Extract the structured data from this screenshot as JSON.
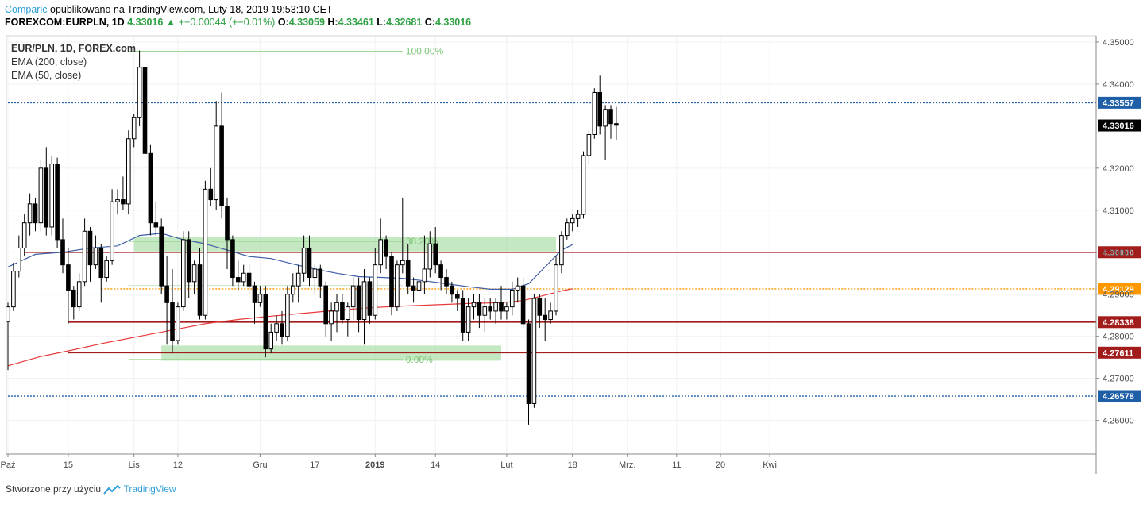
{
  "header": {
    "brand": "Comparic",
    "published": "opublikowano na TradingView.com, Luty 18, 2019 19:53:10 CET",
    "symbol": "FOREXCOM:EURPLN, 1D",
    "last": "4.33016",
    "change": "+−0.00044 (+−0.01%)",
    "o_label": "O:",
    "o": "4.33059",
    "h_label": "H:",
    "h": "4.33461",
    "l_label": "L:",
    "l": "4.32681",
    "c_label": "C:",
    "c": "4.33016"
  },
  "legend": {
    "title": "EUR/PLN, 1D, FOREX.com",
    "ema200": "EMA (200, close)",
    "ema50": "EMA (50, close)"
  },
  "footer": {
    "created": "Stworzone przy użyciu",
    "brand": "TradingView"
  },
  "colors": {
    "up": "#ffffff",
    "down": "#000000",
    "wick": "#000000",
    "ema50": "#3f5fa8",
    "ema200": "#e8393a",
    "level_red": "#a31c1c",
    "level_blue": "#1f5fa8",
    "level_orange": "#ff9800",
    "fib_band": "#a5dca0",
    "fib_text": "#7cc576",
    "grid": "#eef1f4",
    "axis_text": "#4a4a4a"
  },
  "chart_data": {
    "type": "candlestick",
    "title": "EUR/PLN, 1D, FOREX.com",
    "ylim": [
      4.252,
      4.3515
    ],
    "x_ticks": [
      {
        "i": 0,
        "label": "Paź",
        "bold": false
      },
      {
        "i": 11,
        "label": "15",
        "bold": false
      },
      {
        "i": 23,
        "label": "Lis",
        "bold": false
      },
      {
        "i": 31,
        "label": "12",
        "bold": false
      },
      {
        "i": 46,
        "label": "Gru",
        "bold": false
      },
      {
        "i": 56,
        "label": "17",
        "bold": false
      },
      {
        "i": 67,
        "label": "2019",
        "bold": true
      },
      {
        "i": 78,
        "label": "14",
        "bold": false
      },
      {
        "i": 91,
        "label": "Lut",
        "bold": false
      },
      {
        "i": 103,
        "label": "18",
        "bold": false
      },
      {
        "i": 113,
        "label": "Mrz.",
        "bold": false
      },
      {
        "i": 122,
        "label": "11",
        "bold": false
      },
      {
        "i": 130,
        "label": "20",
        "bold": false
      },
      {
        "i": 139,
        "label": "Kwi",
        "bold": false
      }
    ],
    "y_ticks": [
      "4.35000",
      "4.34000",
      "4.32000",
      "4.31000",
      "4.30000",
      "4.29000",
      "4.28000",
      "4.27000",
      "4.26000"
    ],
    "levels": [
      {
        "value": 4.33557,
        "label": "4.33557",
        "color": "#1f5fa8",
        "style": "dotted",
        "from": 0
      },
      {
        "value": 4.33016,
        "label": "4.33016",
        "color": "#000000",
        "style": "none",
        "from": 0
      },
      {
        "value": 4.3,
        "label": "4.30000",
        "color": "#a31c1c",
        "style": "solid",
        "from": 3
      },
      {
        "value": 4.29129,
        "label": "4.29129",
        "color": "#ff9800",
        "style": "dotted",
        "from": 17
      },
      {
        "value": 4.28338,
        "label": "4.28338",
        "color": "#a31c1c",
        "style": "solid",
        "from": 11
      },
      {
        "value": 4.27611,
        "label": "4.27611",
        "color": "#a31c1c",
        "style": "solid",
        "from": 11
      },
      {
        "value": 4.26578,
        "label": "4.26578",
        "color": "#1f5fa8",
        "style": "dotted",
        "from": 0
      }
    ],
    "fib": [
      {
        "label": "100.00%",
        "value": 4.3478
      },
      {
        "label": "38.20%",
        "value": 4.3026
      },
      {
        "label": "0.00%",
        "value": 4.2745
      }
    ],
    "zones": [
      {
        "from": 23,
        "to": 100,
        "y0": 4.3036,
        "y1": 4.3002
      },
      {
        "from": 28,
        "to": 90,
        "y0": 4.2778,
        "y1": 4.2742
      }
    ],
    "candles": [
      [
        4.2835,
        4.288,
        4.272,
        4.287
      ],
      [
        4.287,
        4.2975,
        4.286,
        4.2955
      ],
      [
        4.2955,
        4.304,
        4.294,
        4.301
      ],
      [
        4.301,
        4.309,
        4.299,
        4.307
      ],
      [
        4.307,
        4.314,
        4.304,
        4.3115
      ],
      [
        4.3115,
        4.313,
        4.305,
        4.307
      ],
      [
        4.307,
        4.322,
        4.305,
        4.32
      ],
      [
        4.32,
        4.325,
        4.304,
        4.306
      ],
      [
        4.306,
        4.323,
        4.304,
        4.321
      ],
      [
        4.321,
        4.3225,
        4.301,
        4.303
      ],
      [
        4.303,
        4.308,
        4.295,
        4.297
      ],
      [
        4.297,
        4.301,
        4.283,
        4.291
      ],
      [
        4.291,
        4.292,
        4.284,
        4.287
      ],
      [
        4.287,
        4.295,
        4.286,
        4.293
      ],
      [
        4.293,
        4.308,
        4.292,
        4.305
      ],
      [
        4.305,
        4.306,
        4.293,
        4.297
      ],
      [
        4.297,
        4.304,
        4.296,
        4.301
      ],
      [
        4.301,
        4.302,
        4.288,
        4.294
      ],
      [
        4.294,
        4.299,
        4.293,
        4.298
      ],
      [
        4.298,
        4.315,
        4.297,
        4.312
      ],
      [
        4.312,
        4.315,
        4.309,
        4.3125
      ],
      [
        4.3125,
        4.318,
        4.31,
        4.3115
      ],
      [
        4.3115,
        4.329,
        4.309,
        4.327
      ],
      [
        4.327,
        4.333,
        4.325,
        4.332
      ],
      [
        4.332,
        4.348,
        4.33,
        4.344
      ],
      [
        4.344,
        4.345,
        4.321,
        4.3235
      ],
      [
        4.3235,
        4.3255,
        4.304,
        4.307
      ],
      [
        4.307,
        4.312,
        4.304,
        4.306
      ],
      [
        4.306,
        4.308,
        4.29,
        4.292
      ],
      [
        4.292,
        4.299,
        4.278,
        4.288
      ],
      [
        4.288,
        4.296,
        4.276,
        4.279
      ],
      [
        4.279,
        4.288,
        4.278,
        4.287
      ],
      [
        4.287,
        4.305,
        4.286,
        4.303
      ],
      [
        4.303,
        4.305,
        4.289,
        4.293
      ],
      [
        4.293,
        4.298,
        4.29,
        4.297
      ],
      [
        4.297,
        4.301,
        4.284,
        4.285
      ],
      [
        4.285,
        4.317,
        4.284,
        4.315
      ],
      [
        4.315,
        4.32,
        4.311,
        4.3125
      ],
      [
        4.3125,
        4.336,
        4.31,
        4.33
      ],
      [
        4.33,
        4.338,
        4.308,
        4.311
      ],
      [
        4.311,
        4.313,
        4.296,
        4.303
      ],
      [
        4.303,
        4.304,
        4.292,
        4.294
      ],
      [
        4.294,
        4.298,
        4.291,
        4.293
      ],
      [
        4.293,
        4.297,
        4.292,
        4.295
      ],
      [
        4.295,
        4.297,
        4.29,
        4.292
      ],
      [
        4.292,
        4.293,
        4.283,
        4.288
      ],
      [
        4.288,
        4.292,
        4.287,
        4.29
      ],
      [
        4.29,
        4.292,
        4.275,
        4.277
      ],
      [
        4.277,
        4.283,
        4.276,
        4.281
      ],
      [
        4.281,
        4.285,
        4.279,
        4.283
      ],
      [
        4.283,
        4.286,
        4.278,
        4.28
      ],
      [
        4.28,
        4.292,
        4.279,
        4.29
      ],
      [
        4.29,
        4.295,
        4.288,
        4.292
      ],
      [
        4.292,
        4.297,
        4.288,
        4.295
      ],
      [
        4.295,
        4.304,
        4.293,
        4.301
      ],
      [
        4.301,
        4.304,
        4.292,
        4.294
      ],
      [
        4.294,
        4.297,
        4.29,
        4.296
      ],
      [
        4.296,
        4.297,
        4.289,
        4.292
      ],
      [
        4.292,
        4.293,
        4.28,
        4.283
      ],
      [
        4.283,
        4.288,
        4.279,
        4.286
      ],
      [
        4.286,
        4.29,
        4.281,
        4.288
      ],
      [
        4.288,
        4.29,
        4.283,
        4.284
      ],
      [
        4.284,
        4.288,
        4.28,
        4.287
      ],
      [
        4.287,
        4.294,
        4.284,
        4.292
      ],
      [
        4.292,
        4.294,
        4.281,
        4.284
      ],
      [
        4.284,
        4.296,
        4.278,
        4.293
      ],
      [
        4.293,
        4.294,
        4.283,
        4.285
      ],
      [
        4.285,
        4.301,
        4.284,
        4.297
      ],
      [
        4.297,
        4.308,
        4.295,
        4.303
      ],
      [
        4.303,
        4.304,
        4.296,
        4.299
      ],
      [
        4.299,
        4.3,
        4.285,
        4.287
      ],
      [
        4.287,
        4.298,
        4.286,
        4.297
      ],
      [
        4.297,
        4.313,
        4.295,
        4.298
      ],
      [
        4.298,
        4.302,
        4.29,
        4.292
      ],
      [
        4.292,
        4.294,
        4.288,
        4.291
      ],
      [
        4.291,
        4.294,
        4.287,
        4.293
      ],
      [
        4.293,
        4.304,
        4.29,
        4.296
      ],
      [
        4.296,
        4.305,
        4.294,
        4.302
      ],
      [
        4.302,
        4.306,
        4.295,
        4.297
      ],
      [
        4.297,
        4.298,
        4.291,
        4.294
      ],
      [
        4.294,
        4.296,
        4.29,
        4.292
      ],
      [
        4.292,
        4.293,
        4.288,
        4.29
      ],
      [
        4.29,
        4.291,
        4.286,
        4.289
      ],
      [
        4.289,
        4.291,
        4.279,
        4.281
      ],
      [
        4.281,
        4.289,
        4.279,
        4.287
      ],
      [
        4.287,
        4.29,
        4.284,
        4.288
      ],
      [
        4.288,
        4.29,
        4.282,
        4.285
      ],
      [
        4.285,
        4.289,
        4.281,
        4.287
      ],
      [
        4.287,
        4.289,
        4.284,
        4.286
      ],
      [
        4.286,
        4.289,
        4.283,
        4.288
      ],
      [
        4.288,
        4.292,
        4.284,
        4.286
      ],
      [
        4.286,
        4.288,
        4.284,
        4.287
      ],
      [
        4.287,
        4.293,
        4.285,
        4.291
      ],
      [
        4.291,
        4.294,
        4.288,
        4.292
      ],
      [
        4.292,
        4.294,
        4.282,
        4.283
      ],
      [
        4.283,
        4.284,
        4.259,
        4.264
      ],
      [
        4.264,
        4.29,
        4.263,
        4.289
      ],
      [
        4.289,
        4.29,
        4.282,
        4.285
      ],
      [
        4.285,
        4.289,
        4.279,
        4.284
      ],
      [
        4.284,
        4.288,
        4.283,
        4.286
      ]
    ],
    "candles_tail": [
      [
        4.286,
        4.299,
        4.285,
        4.297
      ],
      [
        4.297,
        4.305,
        4.295,
        4.304
      ],
      [
        4.304,
        4.308,
        4.303,
        4.307
      ],
      [
        4.307,
        4.309,
        4.305,
        4.308
      ],
      [
        4.308,
        4.31,
        4.306,
        4.309
      ],
      [
        4.309,
        4.324,
        4.308,
        4.323
      ],
      [
        4.323,
        4.329,
        4.321,
        4.328
      ],
      [
        4.328,
        4.339,
        4.327,
        4.338
      ],
      [
        4.338,
        4.342,
        4.328,
        4.33
      ],
      [
        4.33,
        4.335,
        4.322,
        4.334
      ],
      [
        4.334,
        4.335,
        4.327,
        4.3306
      ],
      [
        4.3306,
        4.3346,
        4.3268,
        4.3302
      ]
    ],
    "ema50": [
      [
        0,
        4.2965
      ],
      [
        5,
        4.2995
      ],
      [
        10,
        4.3
      ],
      [
        15,
        4.301
      ],
      [
        20,
        4.3015
      ],
      [
        24,
        4.304
      ],
      [
        28,
        4.3045
      ],
      [
        32,
        4.303
      ],
      [
        36,
        4.302
      ],
      [
        40,
        4.3005
      ],
      [
        44,
        4.299
      ],
      [
        48,
        4.2985
      ],
      [
        52,
        4.2972
      ],
      [
        56,
        4.296
      ],
      [
        60,
        4.295
      ],
      [
        64,
        4.2942
      ],
      [
        68,
        4.294
      ],
      [
        72,
        4.2938
      ],
      [
        76,
        4.2932
      ],
      [
        80,
        4.2925
      ],
      [
        84,
        4.2918
      ],
      [
        88,
        4.2912
      ],
      [
        92,
        4.2912
      ],
      [
        95,
        4.2925
      ],
      [
        98,
        4.2965
      ],
      [
        101,
        4.3005
      ],
      [
        103,
        4.3018
      ]
    ],
    "ema200": [
      [
        0,
        4.273
      ],
      [
        6,
        4.2752
      ],
      [
        12,
        4.2768
      ],
      [
        18,
        4.2785
      ],
      [
        24,
        4.28
      ],
      [
        30,
        4.2815
      ],
      [
        36,
        4.283
      ],
      [
        42,
        4.284
      ],
      [
        48,
        4.2848
      ],
      [
        54,
        4.2855
      ],
      [
        60,
        4.2862
      ],
      [
        66,
        4.2868
      ],
      [
        72,
        4.2872
      ],
      [
        78,
        4.2875
      ],
      [
        84,
        4.2878
      ],
      [
        90,
        4.288
      ],
      [
        94,
        4.2885
      ],
      [
        98,
        4.2898
      ],
      [
        101,
        4.2908
      ],
      [
        103,
        4.2913
      ]
    ]
  }
}
